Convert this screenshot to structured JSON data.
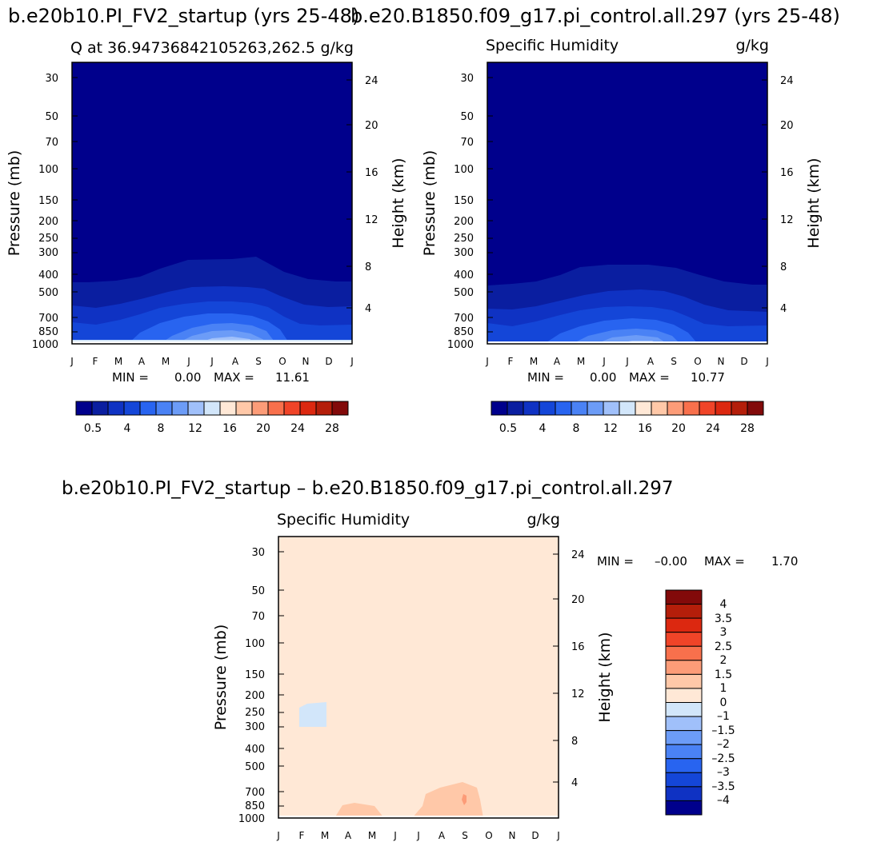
{
  "figure": {
    "title_left": "b.e20b10.PI_FV2_startup (yrs 25-48)",
    "title_right": "b.e20.B1850.f09_g17.pi_control.all.297 (yrs 25-48)",
    "diff_title": "b.e20b10.PI_FV2_startup – b.e20.B1850.f09_g17.pi_control.all.297"
  },
  "chart_data": [
    {
      "id": "left",
      "type": "contour",
      "title_left": "Q at 36.94736842105263,262.5",
      "title_right": "g/kg",
      "xlabel": "",
      "ylabel": "Pressure (mb)",
      "ylabel_right": "Height (km)",
      "x_ticks": [
        "J",
        "F",
        "M",
        "A",
        "M",
        "J",
        "J",
        "A",
        "S",
        "O",
        "N",
        "D",
        "J"
      ],
      "y_ticks": [
        "30",
        "50",
        "70",
        "100",
        "150",
        "200",
        "250",
        "300",
        "400",
        "500",
        "700",
        "850",
        "1000"
      ],
      "height_ticks": [
        "24",
        "20",
        "16",
        "12",
        "8",
        "4"
      ],
      "min_label": "MIN =",
      "min_value": "0.00",
      "max_label": "MAX =",
      "max_value": "11.61",
      "levels": [
        0.5,
        2,
        4,
        6,
        8,
        10,
        12,
        14,
        16,
        18,
        20,
        22,
        24,
        26,
        28
      ],
      "colors": [
        "#00008c",
        "#0a1ea0",
        "#0f32c3",
        "#1446d8",
        "#2864f0",
        "#4a82f5",
        "#6c9cf7",
        "#a0c0fa",
        "#d2e6fa",
        "#ffe8d6",
        "#ffc8a8",
        "#fc9c78",
        "#f8704c",
        "#f04428",
        "#dc2810",
        "#b41e0a",
        "#820a0a"
      ],
      "colorbar_labels": [
        "0.5",
        "4",
        "8",
        "12",
        "16",
        "20",
        "24",
        "28"
      ]
    },
    {
      "id": "right",
      "type": "contour",
      "title_left": "Specific Humidity",
      "title_right": "g/kg",
      "xlabel": "",
      "ylabel": "Pressure (mb)",
      "ylabel_right": "Height (km)",
      "x_ticks": [
        "J",
        "F",
        "M",
        "A",
        "M",
        "J",
        "J",
        "A",
        "S",
        "O",
        "N",
        "D",
        "J"
      ],
      "y_ticks": [
        "30",
        "50",
        "70",
        "100",
        "150",
        "200",
        "250",
        "300",
        "400",
        "500",
        "700",
        "850",
        "1000"
      ],
      "height_ticks": [
        "24",
        "20",
        "16",
        "12",
        "8",
        "4"
      ],
      "min_label": "MIN =",
      "min_value": "0.00",
      "max_label": "MAX =",
      "max_value": "10.77",
      "levels": [
        0.5,
        2,
        4,
        6,
        8,
        10,
        12,
        14,
        16,
        18,
        20,
        22,
        24,
        26,
        28
      ],
      "colors": [
        "#00008c",
        "#0a1ea0",
        "#0f32c3",
        "#1446d8",
        "#2864f0",
        "#4a82f5",
        "#6c9cf7",
        "#a0c0fa",
        "#d2e6fa",
        "#ffe8d6",
        "#ffc8a8",
        "#fc9c78",
        "#f8704c",
        "#f04428",
        "#dc2810",
        "#b41e0a",
        "#820a0a"
      ],
      "colorbar_labels": [
        "0.5",
        "4",
        "8",
        "12",
        "16",
        "20",
        "24",
        "28"
      ]
    },
    {
      "id": "diff",
      "type": "contour",
      "title_left": "Specific Humidity",
      "title_right": "g/kg",
      "xlabel": "",
      "ylabel": "Pressure (mb)",
      "ylabel_right": "Height (km)",
      "x_ticks": [
        "J",
        "F",
        "M",
        "A",
        "M",
        "J",
        "J",
        "A",
        "S",
        "O",
        "N",
        "D",
        "J"
      ],
      "y_ticks": [
        "30",
        "50",
        "70",
        "100",
        "150",
        "200",
        "250",
        "300",
        "400",
        "500",
        "700",
        "850",
        "1000"
      ],
      "height_ticks": [
        "24",
        "20",
        "16",
        "12",
        "8",
        "4"
      ],
      "min_label": "MIN =",
      "min_value": "–0.00",
      "max_label": "MAX =",
      "max_value": "1.70",
      "levels": [
        -4,
        -3.5,
        -3,
        -2.5,
        -2,
        -1.5,
        -1,
        0,
        1,
        1.5,
        2,
        2.5,
        3,
        3.5,
        4
      ],
      "colors": [
        "#820a0a",
        "#b41e0a",
        "#dc2810",
        "#f04428",
        "#f8704c",
        "#fc9c78",
        "#ffc8a8",
        "#ffe8d6",
        "#d2e6fa",
        "#a0c0fa",
        "#6c9cf7",
        "#4a82f5",
        "#2864f0",
        "#1446d8",
        "#0f32c3",
        "#00008c"
      ],
      "colorbar_labels": [
        "4",
        "3.5",
        "3",
        "2.5",
        "2",
        "1.5",
        "1",
        "0",
        "–1",
        "–1.5",
        "–2",
        "–2.5",
        "–3",
        "–3.5",
        "–4"
      ]
    }
  ]
}
